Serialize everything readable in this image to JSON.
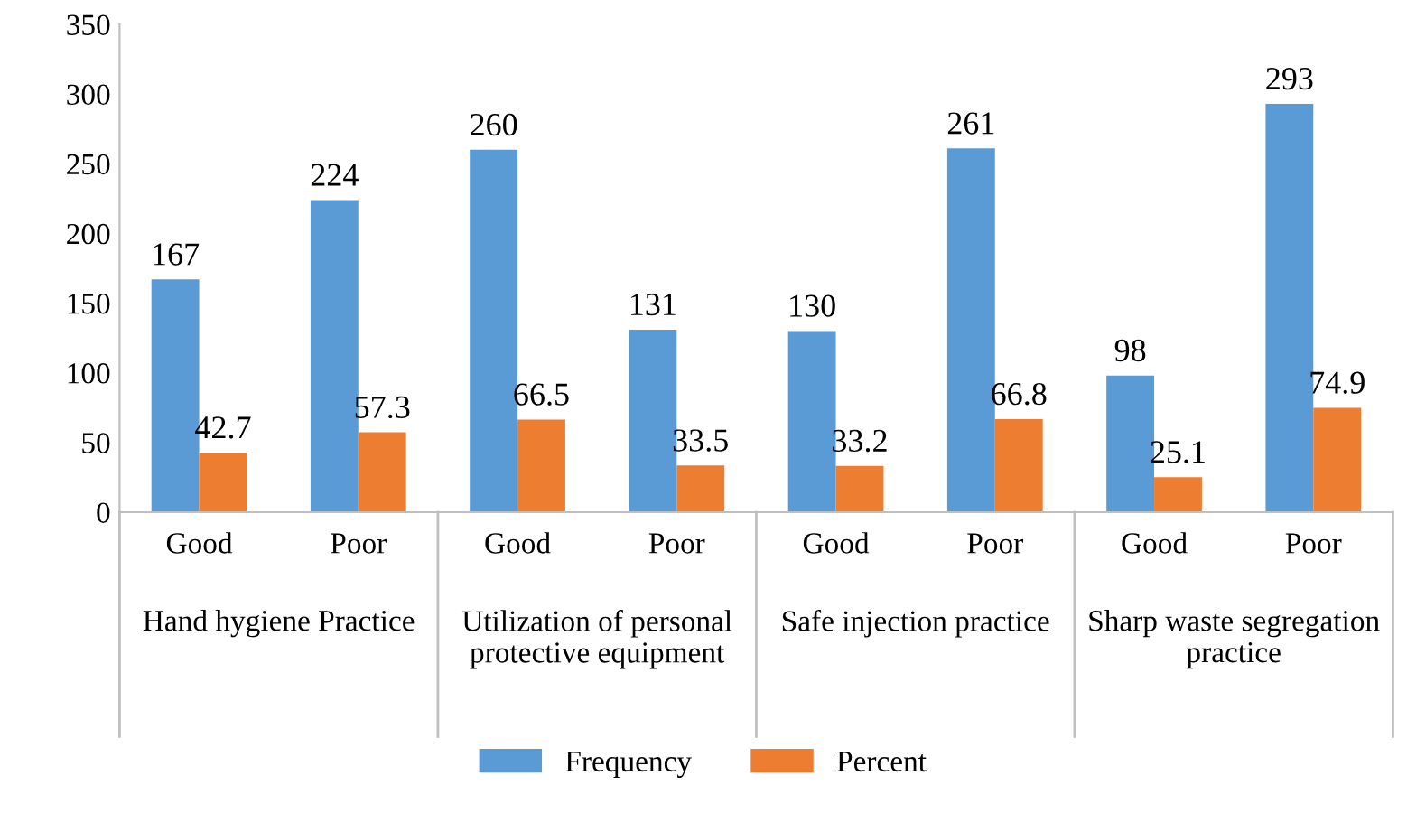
{
  "chart_data": {
    "type": "bar",
    "categories": [
      "Good",
      "Poor",
      "Good",
      "Poor",
      "Good",
      "Poor",
      "Good",
      "Poor"
    ],
    "series": [
      {
        "name": "Frequency",
        "color": "#5b9bd5",
        "values": [
          167,
          224,
          260,
          131,
          130,
          261,
          98,
          293
        ]
      },
      {
        "name": "Percent",
        "color": "#ed7d31",
        "values": [
          42.7,
          57.3,
          66.5,
          33.5,
          33.2,
          66.8,
          25.1,
          74.9
        ]
      }
    ],
    "annotations": [
      "Hand hygiene Practice",
      "Utilization of personal protective equipment",
      "Safe injection practice",
      "Sharp waste segregation practice"
    ],
    "ylim": [
      0,
      350
    ],
    "yticks": [
      0,
      50,
      100,
      150,
      200,
      250,
      300,
      350
    ],
    "grid": false,
    "legend": "bottom",
    "data_labels": true
  }
}
